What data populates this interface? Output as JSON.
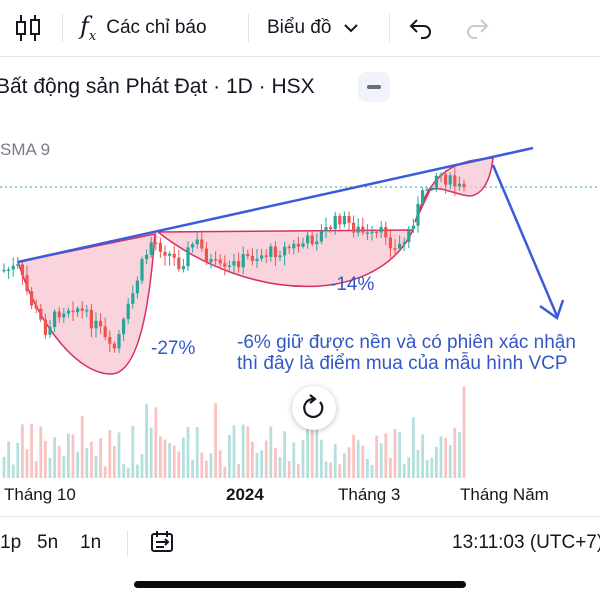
{
  "toolbar": {
    "indicators_label": "Các chỉ báo",
    "chart_type_label": "Biểu đồ"
  },
  "title": "Bất động sản Phát Đạt · 1D · HSX",
  "indicator": "SMA 9",
  "annotations": {
    "drop_left": "-27%",
    "drop_middle": "-14%",
    "note_line1": "-6% giữ được nền và có phiên xác nhận",
    "note_line2": "thì đây là điểm mua của mẫu hình VCP"
  },
  "time_axis": [
    "Tháng 10",
    "2024",
    "Tháng 3",
    "Tháng Năm"
  ],
  "ranges": [
    "1p",
    "5n",
    "1n"
  ],
  "clock": "13:11:03 (UTC+7)",
  "colors": {
    "up": "#26a69a",
    "down": "#ef5350",
    "trendline": "#3d5bd9",
    "cup_fill": "#f7c6d0",
    "cup_stroke": "#d6315e",
    "annotation_text": "#3257c8"
  }
}
